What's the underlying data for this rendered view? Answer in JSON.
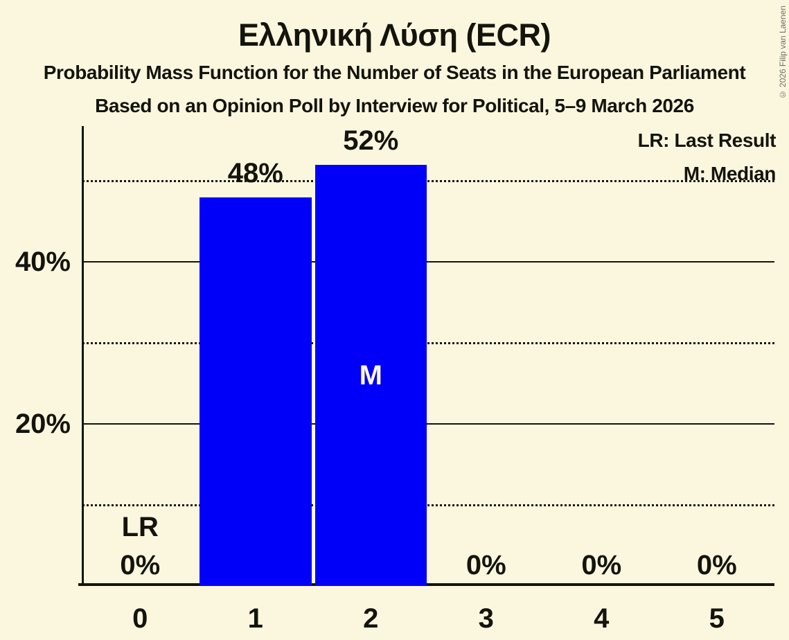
{
  "header": {
    "title": "Ελληνική Λύση (ECR)",
    "subtitle": "Probability Mass Function for the Number of Seats in the European Parliament",
    "poll_line": "Based on an Opinion Poll by Interview for Political, 5–9 March 2026",
    "copyright": "© 2026 Filip van Laenen"
  },
  "legend": {
    "last_result": "LR: Last Result",
    "median": "M: Median"
  },
  "chart_data": {
    "type": "bar",
    "title": "Ελληνική Λύση (ECR)",
    "xlabel": "",
    "ylabel": "",
    "categories": [
      "0",
      "1",
      "2",
      "3",
      "4",
      "5"
    ],
    "values": [
      0,
      48,
      52,
      0,
      0,
      0
    ],
    "value_labels": [
      "0%",
      "48%",
      "52%",
      "0%",
      "0%",
      "0%"
    ],
    "ylim": [
      0,
      56.8
    ],
    "yticks": [
      {
        "value": 20,
        "label": "20%"
      },
      {
        "value": 40,
        "label": "40%"
      }
    ],
    "gridlines": {
      "solid": [
        20,
        40
      ],
      "dotted": [
        10,
        30,
        50
      ]
    },
    "annotations": [
      {
        "text": "LR",
        "category": "0",
        "meaning": "Last Result"
      },
      {
        "text": "M",
        "category": "2",
        "meaning": "Median"
      }
    ],
    "colors": {
      "bar": "#0000fa",
      "background": "#fbf7df",
      "text": "#14140c",
      "median_text": "#fbf7df"
    }
  }
}
